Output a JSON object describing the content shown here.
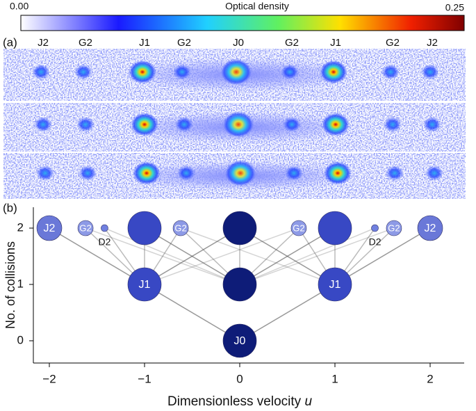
{
  "colorbar": {
    "title": "Optical density",
    "min_label": "0.00",
    "max_label": "0.25"
  },
  "panel_a": {
    "label": "(a)",
    "peak_labels": [
      "J2",
      "G2",
      "J1",
      "G2",
      "J0",
      "G2",
      "J1",
      "G2",
      "J2"
    ]
  },
  "panel_b": {
    "label": "(b)",
    "y_label": "No. of collisions",
    "x_label": "Dimensionless velocity ",
    "x_label_var": "u",
    "xticks": [
      {
        "value": -2,
        "label": "−2"
      },
      {
        "value": -1,
        "label": "−1"
      },
      0,
      1,
      2
    ],
    "yticks": [
      0,
      1,
      2
    ],
    "nodes": [
      {
        "label": "J2",
        "u": -2,
        "collisions": 2
      },
      {
        "label": "G2",
        "u": -1.62,
        "collisions": 2
      },
      {
        "label": "D2",
        "u": -1.42,
        "collisions": 2
      },
      {
        "u": -1,
        "collisions": 2
      },
      {
        "label": "G2",
        "u": -0.62,
        "collisions": 2
      },
      {
        "u": 0,
        "collisions": 2
      },
      {
        "label": "G2",
        "u": 0.62,
        "collisions": 2
      },
      {
        "u": 1,
        "collisions": 2
      },
      {
        "label": "D2",
        "u": 1.42,
        "collisions": 2
      },
      {
        "label": "G2",
        "u": 1.62,
        "collisions": 2
      },
      {
        "label": "J2",
        "u": 2,
        "collisions": 2
      },
      {
        "label": "J1",
        "u": -1,
        "collisions": 1
      },
      {
        "u": 0,
        "collisions": 1
      },
      {
        "label": "J1",
        "u": 1,
        "collisions": 1
      },
      {
        "label": "J0",
        "u": 0,
        "collisions": 0
      }
    ]
  }
}
